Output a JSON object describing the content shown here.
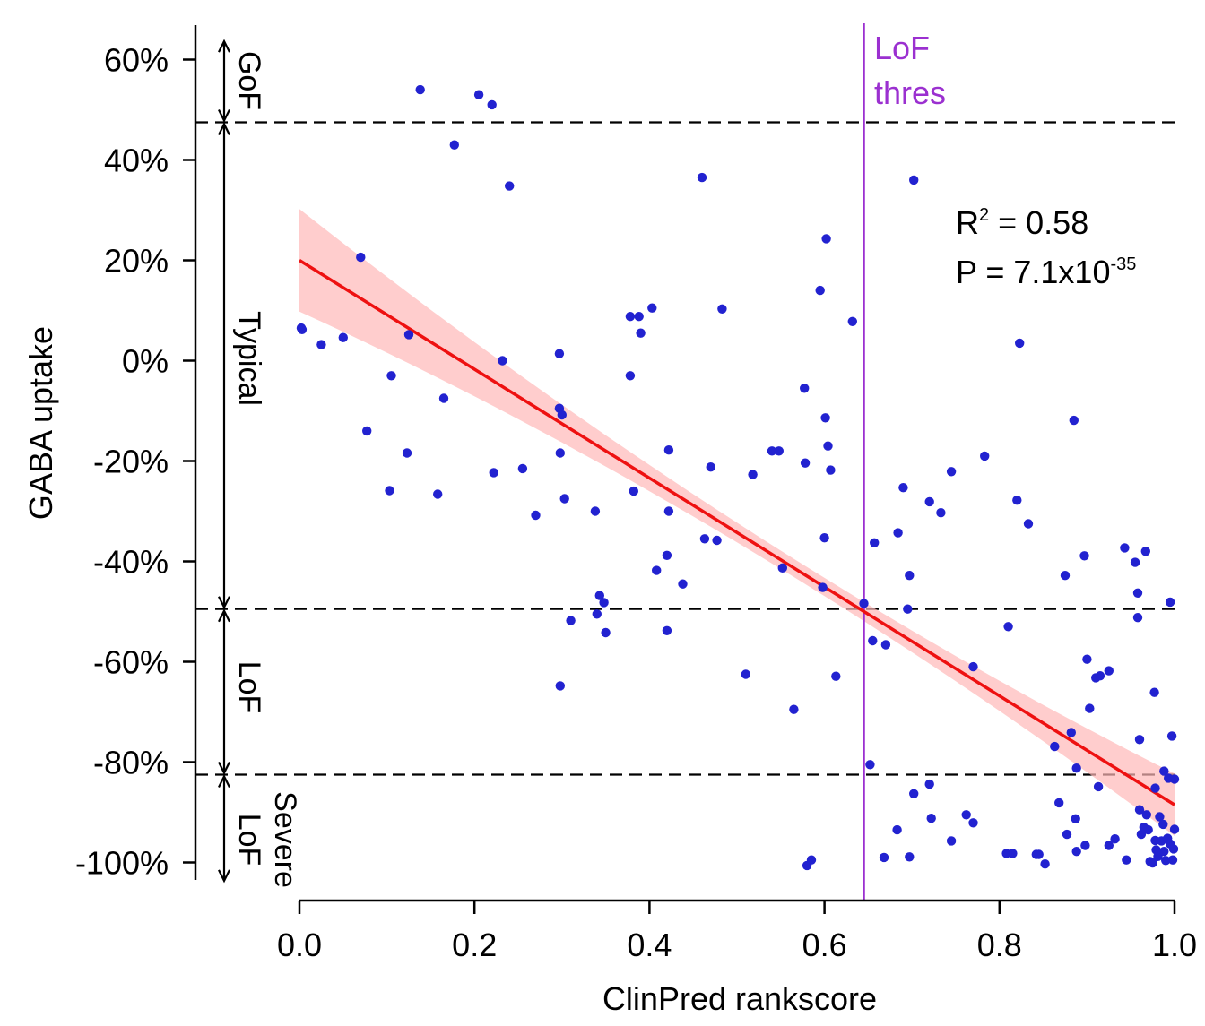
{
  "chart_data": {
    "type": "scatter",
    "title": "",
    "xlabel": "ClinPred rankscore",
    "ylabel": "GABA uptake",
    "xlim": [
      0,
      1.0
    ],
    "ylim": [
      -104,
      66
    ],
    "x_ticks": [
      0,
      0.2,
      0.4,
      0.6,
      0.8,
      1.0
    ],
    "x_tick_labels": [
      "0.0",
      "0.2",
      "0.4",
      "0.6",
      "0.8",
      "1.0"
    ],
    "y_ticks": [
      60,
      40,
      20,
      0,
      -20,
      -40,
      -60,
      -80,
      -100
    ],
    "y_tick_labels": [
      "60%",
      "40%",
      "20%",
      "0%",
      "-20%",
      "-40%",
      "-60%",
      "-80%",
      "-100%"
    ],
    "thresholds_y": [
      47.5,
      -49.5,
      -82.5
    ],
    "categories": [
      {
        "label": "GoF",
        "from": 47.5,
        "to": 64
      },
      {
        "label": "Typical",
        "from": -49.5,
        "to": 47.5
      },
      {
        "label": "LoF",
        "from": -82.5,
        "to": -49.5
      },
      {
        "label": "Severe LoF",
        "from": -104,
        "to": -82.5
      }
    ],
    "category_labels": [
      "GoF",
      "Typical",
      "LoF",
      "Severe",
      "LoF"
    ],
    "lof_threshold": {
      "x": 0.645,
      "label_line1": "LoF",
      "label_line2": "thres",
      "color": "#9b30d0"
    },
    "fit": {
      "x": [
        0,
        1.0
      ],
      "y": [
        20,
        -88.5
      ],
      "color": "#ee1111",
      "band_color": "#ffb8b8"
    },
    "stats": {
      "r2_prefix": "R",
      "r2_sup": "2",
      "r2_value": " = 0.58",
      "p_prefix": "P = 7.1x10",
      "p_sup": "-35"
    },
    "point_color": "#2222d0",
    "points": [
      [
        0.002,
        6.5
      ],
      [
        0.003,
        6.2
      ],
      [
        0.025,
        3.2
      ],
      [
        0.05,
        4.6
      ],
      [
        0.07,
        20.6
      ],
      [
        0.077,
        -14
      ],
      [
        0.103,
        -25.9
      ],
      [
        0.105,
        -3
      ],
      [
        0.125,
        5.2
      ],
      [
        0.123,
        -18.4
      ],
      [
        0.138,
        54
      ],
      [
        0.158,
        -26.6
      ],
      [
        0.165,
        -7.5
      ],
      [
        0.177,
        43
      ],
      [
        0.205,
        53
      ],
      [
        0.22,
        51
      ],
      [
        0.222,
        -22.3
      ],
      [
        0.232,
        0
      ],
      [
        0.24,
        34.8
      ],
      [
        0.255,
        -21.5
      ],
      [
        0.27,
        -30.8
      ],
      [
        0.297,
        1.4
      ],
      [
        0.297,
        -9.5
      ],
      [
        0.298,
        -18.4
      ],
      [
        0.3,
        -10.8
      ],
      [
        0.303,
        -27.5
      ],
      [
        0.31,
        -51.8
      ],
      [
        0.298,
        -64.8
      ],
      [
        0.338,
        -30
      ],
      [
        0.34,
        -50.5
      ],
      [
        0.343,
        -46.8
      ],
      [
        0.348,
        -48.2
      ],
      [
        0.35,
        -54.2
      ],
      [
        0.378,
        8.8
      ],
      [
        0.388,
        8.8
      ],
      [
        0.378,
        -3
      ],
      [
        0.382,
        -26
      ],
      [
        0.39,
        5.5
      ],
      [
        0.403,
        10.5
      ],
      [
        0.408,
        -41.8
      ],
      [
        0.42,
        -38.8
      ],
      [
        0.42,
        -53.8
      ],
      [
        0.422,
        -17.8
      ],
      [
        0.422,
        -30
      ],
      [
        0.438,
        -44.5
      ],
      [
        0.46,
        36.5
      ],
      [
        0.463,
        -35.5
      ],
      [
        0.47,
        -21.2
      ],
      [
        0.477,
        -35.8
      ],
      [
        0.483,
        10.3
      ],
      [
        0.51,
        -62.5
      ],
      [
        0.518,
        -22.7
      ],
      [
        0.54,
        -18
      ],
      [
        0.548,
        -18
      ],
      [
        0.552,
        -41.3
      ],
      [
        0.565,
        -69.5
      ],
      [
        0.577,
        -5.5
      ],
      [
        0.578,
        -20.4
      ],
      [
        0.58,
        -100.6
      ],
      [
        0.585,
        -99.5
      ],
      [
        0.595,
        14
      ],
      [
        0.598,
        -45.2
      ],
      [
        0.602,
        24.3
      ],
      [
        0.601,
        -11.4
      ],
      [
        0.6,
        -35.3
      ],
      [
        0.604,
        -17
      ],
      [
        0.607,
        -21.8
      ],
      [
        0.613,
        -62.9
      ],
      [
        0.632,
        7.8
      ],
      [
        0.645,
        -48.4
      ],
      [
        0.652,
        -80.5
      ],
      [
        0.655,
        -55.8
      ],
      [
        0.657,
        -36.3
      ],
      [
        0.668,
        -99
      ],
      [
        0.67,
        -56.6
      ],
      [
        0.683,
        -93.5
      ],
      [
        0.684,
        -34.3
      ],
      [
        0.69,
        -25.3
      ],
      [
        0.695,
        -49.5
      ],
      [
        0.697,
        -42.8
      ],
      [
        0.697,
        -98.9
      ],
      [
        0.702,
        36
      ],
      [
        0.702,
        -86.3
      ],
      [
        0.72,
        -84.4
      ],
      [
        0.72,
        -28.1
      ],
      [
        0.722,
        -91.2
      ],
      [
        0.733,
        -30.3
      ],
      [
        0.745,
        -22.1
      ],
      [
        0.745,
        -95.7
      ],
      [
        0.762,
        -90.5
      ],
      [
        0.77,
        -61
      ],
      [
        0.77,
        -92.1
      ],
      [
        0.783,
        -19
      ],
      [
        0.808,
        -98.2
      ],
      [
        0.81,
        -53
      ],
      [
        0.815,
        -98.2
      ],
      [
        0.82,
        -27.8
      ],
      [
        0.823,
        3.5
      ],
      [
        0.833,
        -32.5
      ],
      [
        0.842,
        -98.4
      ],
      [
        0.845,
        -98.4
      ],
      [
        0.852,
        -100.3
      ],
      [
        0.863,
        -76.9
      ],
      [
        0.868,
        -88.1
      ],
      [
        0.875,
        -42.8
      ],
      [
        0.877,
        -94.4
      ],
      [
        0.882,
        -74.1
      ],
      [
        0.887,
        -91.3
      ],
      [
        0.885,
        -11.9
      ],
      [
        0.888,
        -97.8
      ],
      [
        0.888,
        -81.2
      ],
      [
        0.9,
        -59.5
      ],
      [
        0.897,
        -38.9
      ],
      [
        0.898,
        -96.6
      ],
      [
        0.903,
        -69.3
      ],
      [
        0.91,
        -63.2
      ],
      [
        0.913,
        -84.9
      ],
      [
        0.915,
        -62.8
      ],
      [
        0.925,
        -96.6
      ],
      [
        0.925,
        -61.8
      ],
      [
        0.932,
        -95.3
      ],
      [
        0.943,
        -37.3
      ],
      [
        0.945,
        -99.5
      ],
      [
        0.955,
        -40.2
      ],
      [
        0.958,
        -46.3
      ],
      [
        0.958,
        -51.2
      ],
      [
        0.96,
        -75.5
      ],
      [
        0.96,
        -89.5
      ],
      [
        0.962,
        -94.4
      ],
      [
        0.965,
        -93
      ],
      [
        0.967,
        -38
      ],
      [
        0.968,
        -90.5
      ],
      [
        0.97,
        -93.5
      ],
      [
        0.972,
        -99.8
      ],
      [
        0.975,
        -100.1
      ],
      [
        0.977,
        -66.1
      ],
      [
        0.978,
        -95.6
      ],
      [
        0.978,
        -85.2
      ],
      [
        0.979,
        -97.5
      ],
      [
        0.981,
        -98.8
      ],
      [
        0.983,
        -90.9
      ],
      [
        0.985,
        -95.7
      ],
      [
        0.987,
        -92.4
      ],
      [
        0.988,
        -81.8
      ],
      [
        0.988,
        -97.8
      ],
      [
        0.99,
        -99.6
      ],
      [
        0.992,
        -95.2
      ],
      [
        0.993,
        -83.2
      ],
      [
        0.995,
        -48.1
      ],
      [
        0.995,
        -96.3
      ],
      [
        0.997,
        -74.8
      ],
      [
        0.998,
        -99.5
      ],
      [
        0.999,
        -97.3
      ],
      [
        1.0,
        -93.4
      ],
      [
        1.0,
        -83.4
      ]
    ]
  }
}
